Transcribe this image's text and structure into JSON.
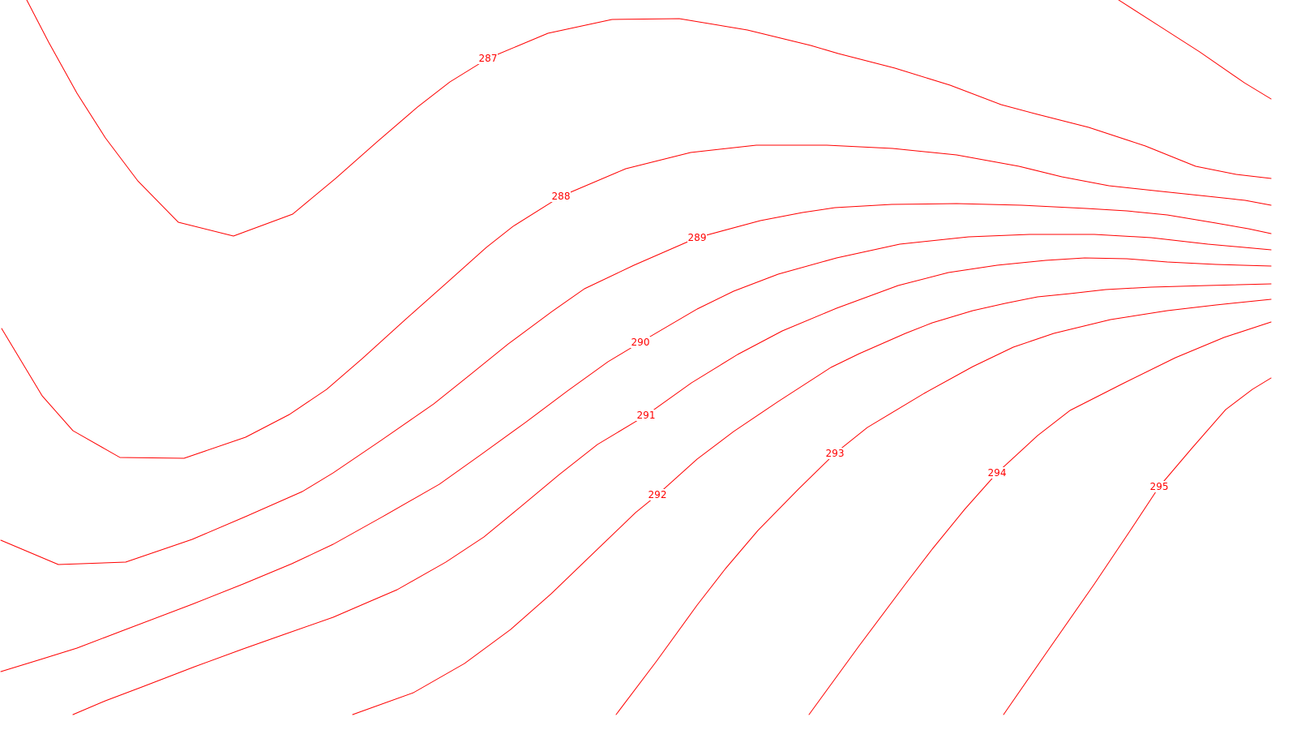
{
  "map": {
    "type": "contour-lines",
    "line_color": "#ff0000",
    "background_color": "#ffffff",
    "contours": [
      {
        "level": "287",
        "labeled": true
      },
      {
        "level": "288",
        "labeled": true
      },
      {
        "level": "289",
        "labeled": true
      },
      {
        "level": "290",
        "labeled": true
      },
      {
        "level": "291",
        "labeled": true
      },
      {
        "level": "292",
        "labeled": true
      },
      {
        "level": "293",
        "labeled": true
      },
      {
        "level": "294",
        "labeled": true
      },
      {
        "level": "295",
        "labeled": true
      }
    ]
  }
}
